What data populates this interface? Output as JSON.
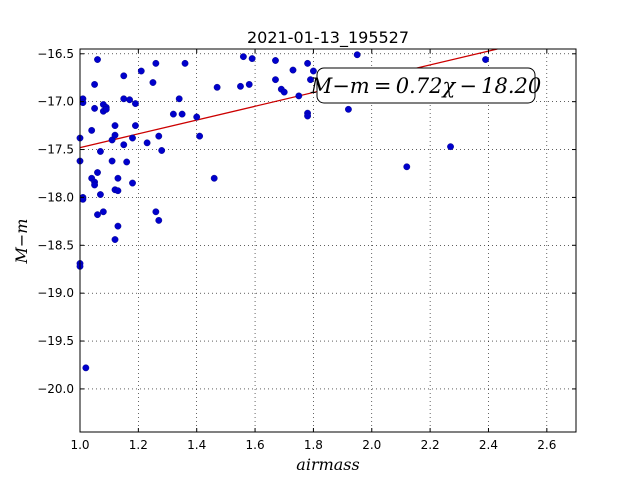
{
  "chart_data": {
    "type": "scatter",
    "title": "2021-01-13_195527",
    "xlabel": "airmass",
    "ylabel": "M−m",
    "xlim": [
      1.0,
      2.7
    ],
    "ylim": [
      -20.45,
      -16.45
    ],
    "y_inverted": true,
    "x_ticks": [
      1.0,
      1.2,
      1.4,
      1.6,
      1.8,
      2.0,
      2.2,
      2.4,
      2.6
    ],
    "x_tick_labels": [
      "1.0",
      "1.2",
      "1.4",
      "1.6",
      "1.8",
      "2.0",
      "2.2",
      "2.4",
      "2.6"
    ],
    "y_ticks": [
      -16.5,
      -17.0,
      -17.5,
      -18.0,
      -18.5,
      -19.0,
      -19.5,
      -20.0
    ],
    "y_tick_labels": [
      "−16.5",
      "−17.0",
      "−17.5",
      "−18.0",
      "−18.5",
      "−19.0",
      "−19.5",
      "−20.0"
    ],
    "grid": true,
    "point_color": "#0000cc",
    "line_color": "#cc0000",
    "fit": {
      "slope": 0.72,
      "intercept": -18.2,
      "label": "M−m = 0.72χ − 18.20"
    },
    "points": [
      [
        1.0,
        -17.38
      ],
      [
        1.0,
        -17.62
      ],
      [
        1.01,
        -16.97
      ],
      [
        1.01,
        -17.01
      ],
      [
        1.01,
        -18.0
      ],
      [
        1.01,
        -18.02
      ],
      [
        1.0,
        -18.69
      ],
      [
        1.0,
        -18.72
      ],
      [
        1.02,
        -19.78
      ],
      [
        1.04,
        -17.3
      ],
      [
        1.05,
        -16.82
      ],
      [
        1.05,
        -17.07
      ],
      [
        1.06,
        -16.56
      ],
      [
        1.04,
        -17.8
      ],
      [
        1.05,
        -17.84
      ],
      [
        1.05,
        -17.87
      ],
      [
        1.06,
        -17.74
      ],
      [
        1.06,
        -18.18
      ],
      [
        1.07,
        -17.52
      ],
      [
        1.07,
        -17.97
      ],
      [
        1.08,
        -17.03
      ],
      [
        1.08,
        -17.1
      ],
      [
        1.09,
        -17.06
      ],
      [
        1.09,
        -17.08
      ],
      [
        1.08,
        -18.15
      ],
      [
        1.11,
        -17.4
      ],
      [
        1.12,
        -17.25
      ],
      [
        1.12,
        -17.35
      ],
      [
        1.11,
        -17.62
      ],
      [
        1.12,
        -17.92
      ],
      [
        1.13,
        -17.93
      ],
      [
        1.13,
        -17.8
      ],
      [
        1.12,
        -18.44
      ],
      [
        1.13,
        -18.3
      ],
      [
        1.15,
        -16.73
      ],
      [
        1.15,
        -16.97
      ],
      [
        1.15,
        -17.45
      ],
      [
        1.16,
        -17.63
      ],
      [
        1.17,
        -16.98
      ],
      [
        1.18,
        -17.38
      ],
      [
        1.18,
        -17.85
      ],
      [
        1.19,
        -17.02
      ],
      [
        1.19,
        -17.25
      ],
      [
        1.21,
        -16.68
      ],
      [
        1.23,
        -17.43
      ],
      [
        1.25,
        -16.8
      ],
      [
        1.26,
        -16.6
      ],
      [
        1.27,
        -17.36
      ],
      [
        1.26,
        -18.15
      ],
      [
        1.27,
        -18.24
      ],
      [
        1.28,
        -17.51
      ],
      [
        1.32,
        -17.13
      ],
      [
        1.34,
        -16.97
      ],
      [
        1.35,
        -17.13
      ],
      [
        1.36,
        -16.6
      ],
      [
        1.4,
        -17.16
      ],
      [
        1.41,
        -17.36
      ],
      [
        1.46,
        -17.8
      ],
      [
        1.47,
        -16.85
      ],
      [
        1.55,
        -16.84
      ],
      [
        1.56,
        -16.53
      ],
      [
        1.58,
        -16.82
      ],
      [
        1.59,
        -16.55
      ],
      [
        1.67,
        -16.77
      ],
      [
        1.67,
        -16.57
      ],
      [
        1.69,
        -16.87
      ],
      [
        1.7,
        -16.9
      ],
      [
        1.73,
        -16.67
      ],
      [
        1.75,
        -16.94
      ],
      [
        1.78,
        -16.6
      ],
      [
        1.78,
        -17.12
      ],
      [
        1.78,
        -17.15
      ],
      [
        1.79,
        -16.77
      ],
      [
        1.8,
        -16.68
      ],
      [
        1.92,
        -17.08
      ],
      [
        1.95,
        -16.51
      ],
      [
        2.12,
        -17.68
      ],
      [
        2.27,
        -17.47
      ],
      [
        2.39,
        -16.56
      ]
    ]
  }
}
